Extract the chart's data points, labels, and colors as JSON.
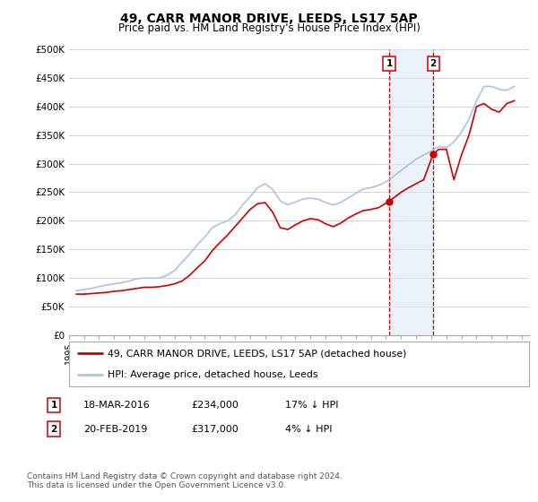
{
  "title": "49, CARR MANOR DRIVE, LEEDS, LS17 5AP",
  "subtitle": "Price paid vs. HM Land Registry's House Price Index (HPI)",
  "legend_line1": "49, CARR MANOR DRIVE, LEEDS, LS17 5AP (detached house)",
  "legend_line2": "HPI: Average price, detached house, Leeds",
  "footer1": "Contains HM Land Registry data © Crown copyright and database right 2024.",
  "footer2": "This data is licensed under the Open Government Licence v3.0.",
  "annotation1_label": "1",
  "annotation1_date": "18-MAR-2016",
  "annotation1_price": "£234,000",
  "annotation1_hpi": "17% ↓ HPI",
  "annotation2_label": "2",
  "annotation2_date": "20-FEB-2019",
  "annotation2_price": "£317,000",
  "annotation2_hpi": "4% ↓ HPI",
  "event1_x": 2016.21,
  "event1_y": 234000,
  "event2_x": 2019.13,
  "event2_y": 317000,
  "hpi_color": "#aac4e0",
  "price_color": "#cc0000",
  "bg_color": "#ffffff",
  "grid_color": "#cccccc",
  "shade_color": "#dce9f5",
  "ylim": [
    0,
    500000
  ],
  "xlim": [
    1995,
    2025.5
  ],
  "yticks": [
    0,
    50000,
    100000,
    150000,
    200000,
    250000,
    300000,
    350000,
    400000,
    450000,
    500000
  ],
  "ytick_labels": [
    "£0",
    "£50K",
    "£100K",
    "£150K",
    "£200K",
    "£250K",
    "£300K",
    "£350K",
    "£400K",
    "£450K",
    "£500K"
  ],
  "hpi_data_x": [
    1995.5,
    1996.0,
    1996.5,
    1997.0,
    1997.5,
    1998.0,
    1998.5,
    1999.0,
    1999.5,
    2000.0,
    2000.5,
    2001.0,
    2001.5,
    2002.0,
    2002.5,
    2003.0,
    2003.5,
    2004.0,
    2004.5,
    2005.0,
    2005.5,
    2006.0,
    2006.5,
    2007.0,
    2007.5,
    2008.0,
    2008.5,
    2009.0,
    2009.5,
    2010.0,
    2010.5,
    2011.0,
    2011.5,
    2012.0,
    2012.5,
    2013.0,
    2013.5,
    2014.0,
    2014.5,
    2015.0,
    2015.5,
    2016.0,
    2016.5,
    2017.0,
    2017.5,
    2018.0,
    2018.5,
    2019.0,
    2019.5,
    2020.0,
    2020.5,
    2021.0,
    2021.5,
    2022.0,
    2022.5,
    2023.0,
    2023.5,
    2024.0,
    2024.5
  ],
  "hpi_data_y": [
    78000,
    80000,
    82000,
    85000,
    88000,
    90000,
    92000,
    95000,
    99000,
    100000,
    100000,
    100000,
    105000,
    113000,
    128000,
    142000,
    158000,
    172000,
    188000,
    195000,
    200000,
    210000,
    228000,
    242000,
    258000,
    265000,
    255000,
    235000,
    228000,
    233000,
    238000,
    240000,
    238000,
    232000,
    228000,
    232000,
    240000,
    248000,
    256000,
    258000,
    262000,
    268000,
    278000,
    288000,
    298000,
    308000,
    315000,
    322000,
    330000,
    328000,
    338000,
    355000,
    378000,
    410000,
    435000,
    435000,
    430000,
    428000,
    435000
  ],
  "price_data_x": [
    1995.5,
    1996.0,
    1996.5,
    1997.0,
    1997.5,
    1998.0,
    1998.5,
    1999.0,
    1999.5,
    2000.0,
    2000.5,
    2001.0,
    2001.5,
    2002.0,
    2002.5,
    2003.0,
    2003.5,
    2004.0,
    2004.5,
    2005.0,
    2005.5,
    2006.0,
    2006.5,
    2007.0,
    2007.5,
    2008.0,
    2008.5,
    2009.0,
    2009.5,
    2010.0,
    2010.5,
    2011.0,
    2011.5,
    2012.0,
    2012.5,
    2013.0,
    2013.5,
    2014.0,
    2014.5,
    2015.0,
    2015.5,
    2016.21,
    2016.5,
    2017.0,
    2017.5,
    2018.0,
    2018.5,
    2019.13,
    2019.5,
    2020.0,
    2020.5,
    2021.0,
    2021.5,
    2022.0,
    2022.5,
    2023.0,
    2023.5,
    2024.0,
    2024.5
  ],
  "price_data_y": [
    72000,
    72000,
    73000,
    74000,
    75000,
    77000,
    78000,
    80000,
    82000,
    84000,
    84000,
    85000,
    87000,
    90000,
    95000,
    105000,
    118000,
    130000,
    148000,
    162000,
    175000,
    190000,
    205000,
    220000,
    230000,
    232000,
    215000,
    188000,
    185000,
    193000,
    200000,
    204000,
    202000,
    195000,
    190000,
    196000,
    205000,
    212000,
    218000,
    220000,
    223000,
    234000,
    240000,
    250000,
    258000,
    265000,
    272000,
    317000,
    325000,
    325000,
    272000,
    315000,
    350000,
    400000,
    405000,
    395000,
    390000,
    405000,
    410000
  ]
}
